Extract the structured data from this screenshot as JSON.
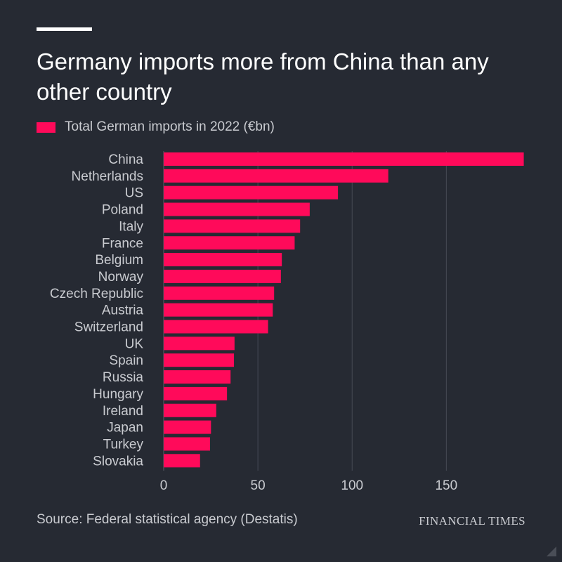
{
  "header": {
    "title": "Germany imports more from China than any other country"
  },
  "legend": {
    "label": "Total German imports in 2022 (€bn)",
    "color": "#ff0a5a"
  },
  "footer": {
    "source": "Source: Federal statistical agency (Destatis)",
    "brand": "FINANCIAL TIMES"
  },
  "chart_data": {
    "type": "bar",
    "orientation": "horizontal",
    "title": "Germany imports more from China than any other country",
    "xlabel": "",
    "ylabel": "",
    "xlim": [
      0,
      192
    ],
    "xticks": [
      0,
      50,
      100,
      150
    ],
    "grid": true,
    "legend_position": "top-left",
    "bar_color": "#ff0a5a",
    "categories": [
      "China",
      "Netherlands",
      "US",
      "Poland",
      "Italy",
      "France",
      "Belgium",
      "Norway",
      "Czech Republic",
      "Austria",
      "Switzerland",
      "UK",
      "Spain",
      "Russia",
      "Hungary",
      "Ireland",
      "Japan",
      "Turkey",
      "Slovakia"
    ],
    "series": [
      {
        "name": "Total German imports in 2022 (€bn)",
        "values": [
          191.1,
          119.2,
          92.5,
          77.5,
          72.4,
          69.5,
          62.7,
          62.2,
          58.6,
          57.9,
          55.4,
          37.6,
          37.3,
          35.5,
          33.6,
          27.9,
          25.1,
          24.6,
          19.3
        ]
      }
    ]
  }
}
